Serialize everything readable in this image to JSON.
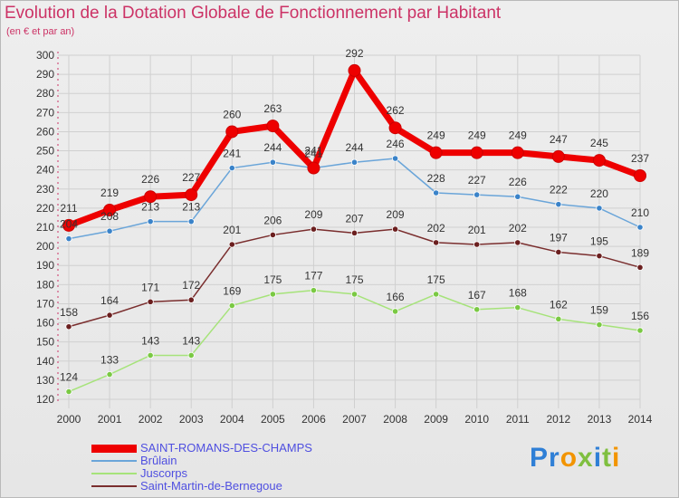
{
  "header": {
    "title": "Evolution de la Dotation Globale de Fonctionnement par Habitant",
    "subtitle": "(en € et par an)"
  },
  "brand": {
    "logo_text": "Proxiti"
  },
  "colors": {
    "title": "#cc3366",
    "legend_text": "#4f4fe0",
    "grid": "#d0d0d0"
  },
  "chart_data": {
    "type": "line",
    "x": [
      "2000",
      "2001",
      "2002",
      "2003",
      "2004",
      "2005",
      "2006",
      "2007",
      "2008",
      "2009",
      "2010",
      "2011",
      "2012",
      "2013",
      "2014"
    ],
    "ylim": [
      120,
      300
    ],
    "yticks": [
      120,
      130,
      140,
      150,
      160,
      170,
      180,
      190,
      200,
      210,
      220,
      230,
      240,
      250,
      260,
      270,
      280,
      290,
      300
    ],
    "grid": true,
    "legend_position": "bottom-left",
    "series": [
      {
        "name": "SAINT-ROMANS-DES-CHAMPS",
        "color": "#ee0000",
        "marker": "#ee0000",
        "width": 7,
        "values": [
          211,
          219,
          226,
          227,
          260,
          263,
          241,
          292,
          262,
          249,
          249,
          249,
          247,
          245,
          237
        ]
      },
      {
        "name": "Brûlain",
        "color": "#6aa5d9",
        "marker": "#3a83c9",
        "width": 1.5,
        "values": [
          204,
          208,
          213,
          213,
          241,
          244,
          241,
          244,
          246,
          228,
          227,
          226,
          222,
          220,
          210
        ]
      },
      {
        "name": "Juscorps",
        "color": "#a6e37a",
        "marker": "#7ac943",
        "width": 1.5,
        "values": [
          124,
          133,
          143,
          143,
          169,
          175,
          177,
          175,
          166,
          175,
          167,
          168,
          162,
          159,
          156
        ]
      },
      {
        "name": "Saint-Martin-de-Bernegoue",
        "color": "#7a2e2e",
        "marker": "#6b1f1f",
        "width": 1.5,
        "values": [
          158,
          164,
          171,
          172,
          201,
          206,
          209,
          207,
          209,
          202,
          201,
          202,
          197,
          195,
          189
        ]
      }
    ]
  }
}
